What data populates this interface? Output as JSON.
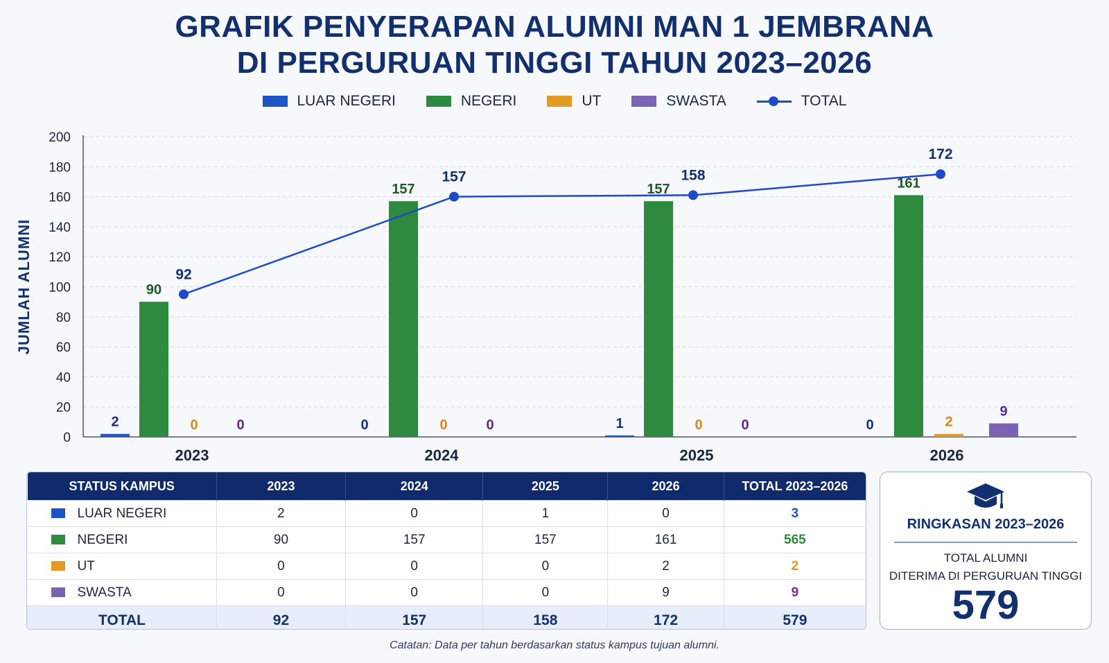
{
  "title_line1": "GRAFIK PENYERAPAN ALUMNI MAN 1 JEMBRANA",
  "title_line2": "DI PERGURUAN TINGGI TAHUN 2023–2026",
  "colors": {
    "luar_negeri": "#1f53c8",
    "negeri": "#2e8a3e",
    "ut": "#e39a22",
    "swasta": "#7b62b3",
    "total": "#1f49c9",
    "navy": "#12306e"
  },
  "chart_data": {
    "type": "bar",
    "title": "GRAFIK PENYERAPAN ALUMNI MAN 1 JEMBRANA DI PERGURUAN TINGGI TAHUN 2023–2026",
    "xlabel": "",
    "ylabel": "JUMLAH ALUMNI",
    "categories": [
      "2023",
      "2024",
      "2025",
      "2026"
    ],
    "ylim": [
      0,
      200
    ],
    "yticks": [
      0,
      20,
      40,
      60,
      80,
      100,
      120,
      140,
      160,
      180,
      200
    ],
    "grid": true,
    "legend_position": "top-center",
    "series": [
      {
        "name": "LUAR NEGERI",
        "type": "bar",
        "values": [
          2,
          0,
          1,
          0
        ]
      },
      {
        "name": "NEGERI",
        "type": "bar",
        "values": [
          90,
          157,
          157,
          161
        ]
      },
      {
        "name": "UT",
        "type": "bar",
        "values": [
          0,
          0,
          0,
          2
        ]
      },
      {
        "name": "SWASTA",
        "type": "bar",
        "values": [
          0,
          0,
          0,
          9
        ]
      },
      {
        "name": "TOTAL",
        "type": "line",
        "values": [
          92,
          157,
          158,
          172
        ]
      }
    ]
  },
  "table": {
    "headers": [
      "STATUS KAMPUS",
      "2023",
      "2024",
      "2025",
      "2026",
      "TOTAL 2023–2026"
    ],
    "rows": [
      {
        "label": "LUAR NEGERI",
        "values": [
          "2",
          "0",
          "1",
          "0"
        ],
        "total": "3"
      },
      {
        "label": "NEGERI",
        "values": [
          "90",
          "157",
          "157",
          "161"
        ],
        "total": "565"
      },
      {
        "label": "UT",
        "values": [
          "0",
          "0",
          "0",
          "2"
        ],
        "total": "2"
      },
      {
        "label": "SWASTA",
        "values": [
          "0",
          "0",
          "0",
          "9"
        ],
        "total": "9"
      }
    ],
    "total_row": {
      "label": "TOTAL",
      "values": [
        "92",
        "157",
        "158",
        "172"
      ],
      "total": "579"
    }
  },
  "summary": {
    "title": "RINGKASAN 2023–2026",
    "line1": "TOTAL ALUMNI",
    "line2": "DITERIMA DI PERGURUAN TINGGI",
    "value": "579",
    "icon": "graduation-cap-icon"
  },
  "note": "Catatan: Data per tahun berdasarkan status kampus tujuan alumni."
}
